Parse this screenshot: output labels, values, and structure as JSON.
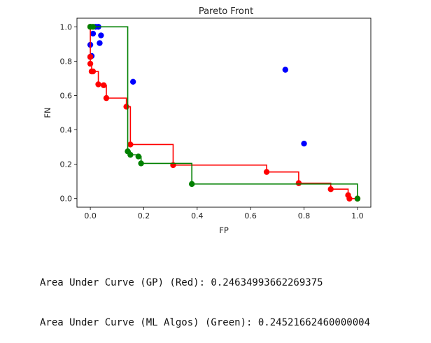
{
  "chart_data": {
    "type": "scatter",
    "title": "Pareto Front",
    "xlabel": "FP",
    "ylabel": "FN",
    "xlim": [
      -0.05,
      1.05
    ],
    "ylim": [
      -0.05,
      1.05
    ],
    "xticks": [
      "0.0",
      "0.2",
      "0.4",
      "0.6",
      "0.8",
      "1.0"
    ],
    "yticks": [
      "0.0",
      "0.2",
      "0.4",
      "0.6",
      "0.8",
      "1.0"
    ],
    "grid": false,
    "series": [
      {
        "color": "#0000ff",
        "kind": "points",
        "points": [
          [
            0.02,
            1.0
          ],
          [
            0.03,
            1.0
          ],
          [
            0.01,
            0.96
          ],
          [
            0.04,
            0.95
          ],
          [
            0.035,
            0.905
          ],
          [
            0.0,
            0.895
          ],
          [
            0.005,
            0.83
          ],
          [
            0.0,
            0.825
          ],
          [
            0.16,
            0.68
          ],
          [
            0.73,
            0.75
          ],
          [
            0.8,
            0.32
          ]
        ]
      },
      {
        "color": "#ff0000",
        "kind": "points+step",
        "points": [
          [
            0.0,
            1.0
          ],
          [
            0.0,
            0.825
          ],
          [
            0.0,
            0.785
          ],
          [
            0.01,
            0.74
          ],
          [
            0.005,
            0.74
          ],
          [
            0.03,
            0.665
          ],
          [
            0.05,
            0.66
          ],
          [
            0.06,
            0.585
          ],
          [
            0.135,
            0.535
          ],
          [
            0.15,
            0.315
          ],
          [
            0.31,
            0.195
          ],
          [
            0.66,
            0.155
          ],
          [
            0.78,
            0.09
          ],
          [
            0.9,
            0.055
          ],
          [
            0.965,
            0.02
          ],
          [
            0.97,
            0.0
          ],
          [
            1.0,
            0.0
          ]
        ]
      },
      {
        "color": "#008000",
        "kind": "points+step",
        "points": [
          [
            0.0,
            1.0
          ],
          [
            0.01,
            1.0
          ],
          [
            0.14,
            0.275
          ],
          [
            0.15,
            0.255
          ],
          [
            0.18,
            0.245
          ],
          [
            0.19,
            0.205
          ],
          [
            0.38,
            0.085
          ],
          [
            1.0,
            0.0
          ]
        ]
      }
    ]
  },
  "output": {
    "line1": "Area Under Curve (GP) (Red): 0.24634993662269375",
    "line2": "Area Under Curve (ML Algos) (Green): 0.24521662460000004"
  }
}
